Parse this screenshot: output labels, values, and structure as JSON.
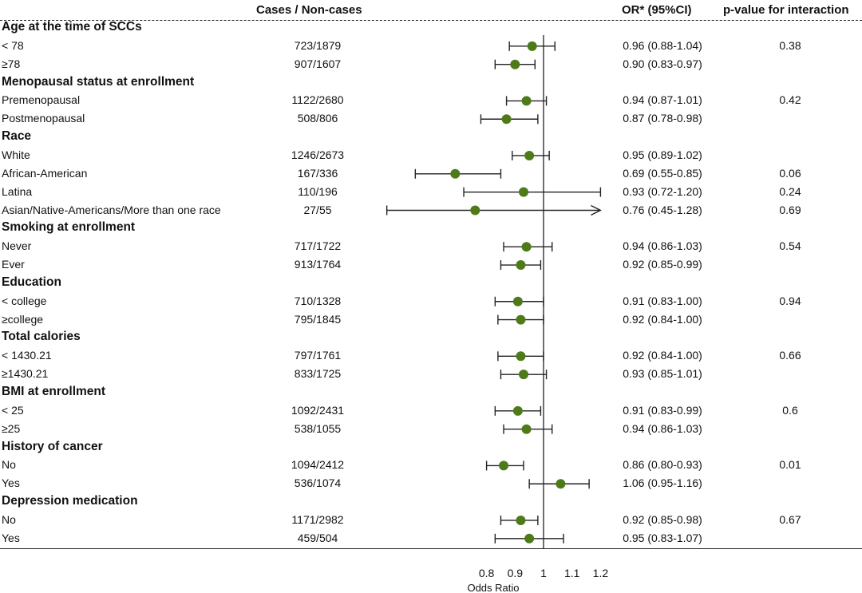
{
  "headers": {
    "cases": "Cases / Non-cases",
    "or": "OR* (95%CI)",
    "pvalue": "p-value for interaction"
  },
  "rows": [
    {
      "type": "group",
      "label": "Age at the time of SCCs"
    },
    {
      "type": "item",
      "label": "< 78",
      "cases": "723/1879",
      "or": 0.96,
      "lo": 0.88,
      "hi": 1.04,
      "or_text": "0.96 (0.88-1.04)",
      "p": "0.38"
    },
    {
      "type": "item",
      "label": "≥78",
      "cases": "907/1607",
      "or": 0.9,
      "lo": 0.83,
      "hi": 0.97,
      "or_text": "0.90 (0.83-0.97)",
      "p": ""
    },
    {
      "type": "group",
      "label": "Menopausal status at enrollment"
    },
    {
      "type": "item",
      "label": "Premenopausal",
      "cases": "1122/2680",
      "or": 0.94,
      "lo": 0.87,
      "hi": 1.01,
      "or_text": "0.94 (0.87-1.01)",
      "p": "0.42"
    },
    {
      "type": "item",
      "label": "Postmenopausal",
      "cases": "508/806",
      "or": 0.87,
      "lo": 0.78,
      "hi": 0.98,
      "or_text": "0.87 (0.78-0.98)",
      "p": ""
    },
    {
      "type": "group",
      "label": "Race"
    },
    {
      "type": "item",
      "label": "White",
      "cases": "1246/2673",
      "or": 0.95,
      "lo": 0.89,
      "hi": 1.02,
      "or_text": "0.95 (0.89-1.02)",
      "p": ""
    },
    {
      "type": "item",
      "label": "African-American",
      "cases": "167/336",
      "or": 0.69,
      "lo": 0.55,
      "hi": 0.85,
      "or_text": "0.69 (0.55-0.85)",
      "p": "0.06"
    },
    {
      "type": "item",
      "label": "Latina",
      "cases": "110/196",
      "or": 0.93,
      "lo": 0.72,
      "hi": 1.2,
      "or_text": "0.93 (0.72-1.20)",
      "p": "0.24"
    },
    {
      "type": "item",
      "label": "Asian/Native-Americans/More than one race",
      "cases": "27/55",
      "or": 0.76,
      "lo": 0.45,
      "hi": 1.28,
      "or_text": "0.76 (0.45-1.28)",
      "p": "0.69"
    },
    {
      "type": "group",
      "label": "Smoking at enrollment"
    },
    {
      "type": "item",
      "label": "Never",
      "cases": "717/1722",
      "or": 0.94,
      "lo": 0.86,
      "hi": 1.03,
      "or_text": "0.94 (0.86-1.03)",
      "p": "0.54"
    },
    {
      "type": "item",
      "label": "Ever",
      "cases": "913/1764",
      "or": 0.92,
      "lo": 0.85,
      "hi": 0.99,
      "or_text": "0.92 (0.85-0.99)",
      "p": ""
    },
    {
      "type": "group",
      "label": "Education"
    },
    {
      "type": "item",
      "label": "< college",
      "cases": "710/1328",
      "or": 0.91,
      "lo": 0.83,
      "hi": 1.0,
      "or_text": "0.91 (0.83-1.00)",
      "p": "0.94"
    },
    {
      "type": "item",
      "label": "≥college",
      "cases": "795/1845",
      "or": 0.92,
      "lo": 0.84,
      "hi": 1.0,
      "or_text": "0.92 (0.84-1.00)",
      "p": ""
    },
    {
      "type": "group",
      "label": "Total calories"
    },
    {
      "type": "item",
      "label": "< 1430.21",
      "cases": "797/1761",
      "or": 0.92,
      "lo": 0.84,
      "hi": 1.0,
      "or_text": "0.92 (0.84-1.00)",
      "p": "0.66"
    },
    {
      "type": "item",
      "label": "≥1430.21",
      "cases": "833/1725",
      "or": 0.93,
      "lo": 0.85,
      "hi": 1.01,
      "or_text": "0.93 (0.85-1.01)",
      "p": ""
    },
    {
      "type": "group",
      "label": "BMI at enrollment"
    },
    {
      "type": "item",
      "label": "< 25",
      "cases": "1092/2431",
      "or": 0.91,
      "lo": 0.83,
      "hi": 0.99,
      "or_text": "0.91 (0.83-0.99)",
      "p": "0.6"
    },
    {
      "type": "item",
      "label": "≥25",
      "cases": "538/1055",
      "or": 0.94,
      "lo": 0.86,
      "hi": 1.03,
      "or_text": "0.94 (0.86-1.03)",
      "p": ""
    },
    {
      "type": "group",
      "label": "History of cancer"
    },
    {
      "type": "item",
      "label": "No",
      "cases": "1094/2412",
      "or": 0.86,
      "lo": 0.8,
      "hi": 0.93,
      "or_text": "0.86 (0.80-0.93)",
      "p": "0.01"
    },
    {
      "type": "item",
      "label": "Yes",
      "cases": "536/1074",
      "or": 1.06,
      "lo": 0.95,
      "hi": 1.16,
      "or_text": "1.06 (0.95-1.16)",
      "p": ""
    },
    {
      "type": "group",
      "label": "Depression medication"
    },
    {
      "type": "item",
      "label": "No",
      "cases": "1171/2982",
      "or": 0.92,
      "lo": 0.85,
      "hi": 0.98,
      "or_text": "0.92 (0.85-0.98)",
      "p": "0.67"
    },
    {
      "type": "item",
      "label": "Yes",
      "cases": "459/504",
      "or": 0.95,
      "lo": 0.83,
      "hi": 1.07,
      "or_text": "0.95 (0.83-1.07)",
      "p": ""
    }
  ],
  "chart_data": {
    "type": "scatter",
    "subtype": "forest-plot",
    "xlabel": "Odds Ratio",
    "ylabel": "",
    "title": "",
    "xlim": [
      0.45,
      1.2
    ],
    "xticks": [
      0.8,
      0.9,
      1,
      1.1,
      1.2
    ],
    "xtick_labels": [
      "0.8",
      "0.9",
      "1",
      "1.1",
      "1.2"
    ],
    "reference_line": 1,
    "marker_color": "#4e7a1a",
    "truncated_arrow_note": "Upper CI 1.28 exceeds axis; drawn with arrow"
  }
}
